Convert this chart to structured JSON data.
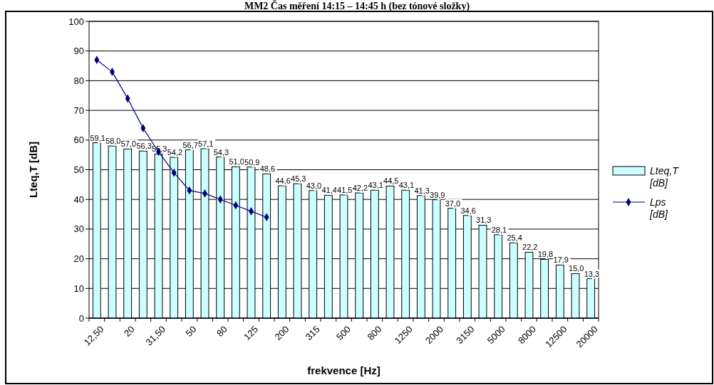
{
  "chart_data": {
    "type": "bar",
    "title": "MM2 Čas měření 14:15 – 14:45 h (bez tónové složky)",
    "xlabel": "frekvence [Hz]",
    "ylabel": "Lteq,T [dB]",
    "categories": [
      "12,50",
      null,
      "20",
      null,
      "31,50",
      null,
      "50",
      null,
      "80",
      null,
      "125",
      null,
      "200",
      null,
      "315",
      null,
      "500",
      null,
      "800",
      null,
      "1250",
      null,
      "2000",
      null,
      "3150",
      null,
      "5000",
      null,
      "8000",
      null,
      "12500",
      null,
      "20000"
    ],
    "series": [
      {
        "name": "Lteq,T [dB]",
        "color": "#ccffff",
        "values": [
          59.1,
          58.0,
          57.0,
          56.3,
          55.3,
          54.2,
          56.7,
          57.1,
          54.3,
          51.0,
          50.9,
          48.6,
          44.6,
          45.3,
          43.0,
          41.4,
          41.5,
          42.2,
          43.1,
          44.5,
          43.1,
          41.3,
          39.9,
          37.0,
          34.6,
          31.3,
          28.1,
          25.4,
          22.2,
          19.8,
          17.9,
          15.0,
          13.3
        ],
        "value_labels": [
          "59,1",
          "58,0",
          "57,0",
          "56,3",
          "55,3",
          "54,2",
          "56,7",
          "57,1",
          "54,3",
          "51,0",
          "50,9",
          "48,6",
          "44,6",
          "45,3",
          "43,0",
          "41,4",
          "41,5",
          "42,2",
          "43,1",
          "44,5",
          "43,1",
          "41,3",
          "39,9",
          "37,0",
          "34,6",
          "31,3",
          "28,1",
          "25,4",
          "22,2",
          "19,8",
          "17,9",
          "15,0",
          "13,3"
        ]
      },
      {
        "name": "Lps [dB]",
        "type": "line",
        "color": "#000080",
        "marker": "diamond",
        "values": [
          87,
          83,
          74,
          64,
          56,
          49,
          43,
          42,
          40,
          38,
          36,
          34,
          null,
          null,
          null,
          null,
          null,
          null,
          null,
          null,
          null,
          null,
          null,
          null,
          null,
          null,
          null,
          null,
          null,
          null,
          null,
          null,
          null
        ]
      }
    ],
    "ylim": [
      0,
      100
    ],
    "yticks": [
      0,
      10,
      20,
      30,
      40,
      50,
      60,
      70,
      80,
      90,
      100
    ],
    "grid": "y",
    "legend": "right"
  }
}
